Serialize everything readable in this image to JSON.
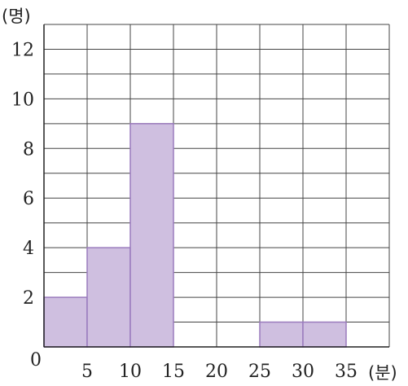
{
  "chart_data": {
    "type": "bar",
    "histogram": true,
    "bins": [
      {
        "from": 0,
        "to": 5,
        "value": 2
      },
      {
        "from": 5,
        "to": 10,
        "value": 4
      },
      {
        "from": 10,
        "to": 15,
        "value": 9
      },
      {
        "from": 15,
        "to": 20,
        "value": 0
      },
      {
        "from": 20,
        "to": 25,
        "value": 0
      },
      {
        "from": 25,
        "to": 30,
        "value": 1
      },
      {
        "from": 30,
        "to": 35,
        "value": 1
      }
    ],
    "xlim": [
      0,
      40
    ],
    "ylim": [
      0,
      13
    ],
    "x_ticks": [
      "0",
      "5",
      "10",
      "15",
      "20",
      "25",
      "30",
      "35"
    ],
    "y_ticks": [
      "2",
      "4",
      "6",
      "8",
      "10",
      "12"
    ],
    "x_unit": "(분)",
    "y_unit": "(명)",
    "grid": true,
    "colors": {
      "bar_fill": "#cfbfe0",
      "bar_stroke": "#9a7bbd",
      "grid": "#444444"
    }
  }
}
